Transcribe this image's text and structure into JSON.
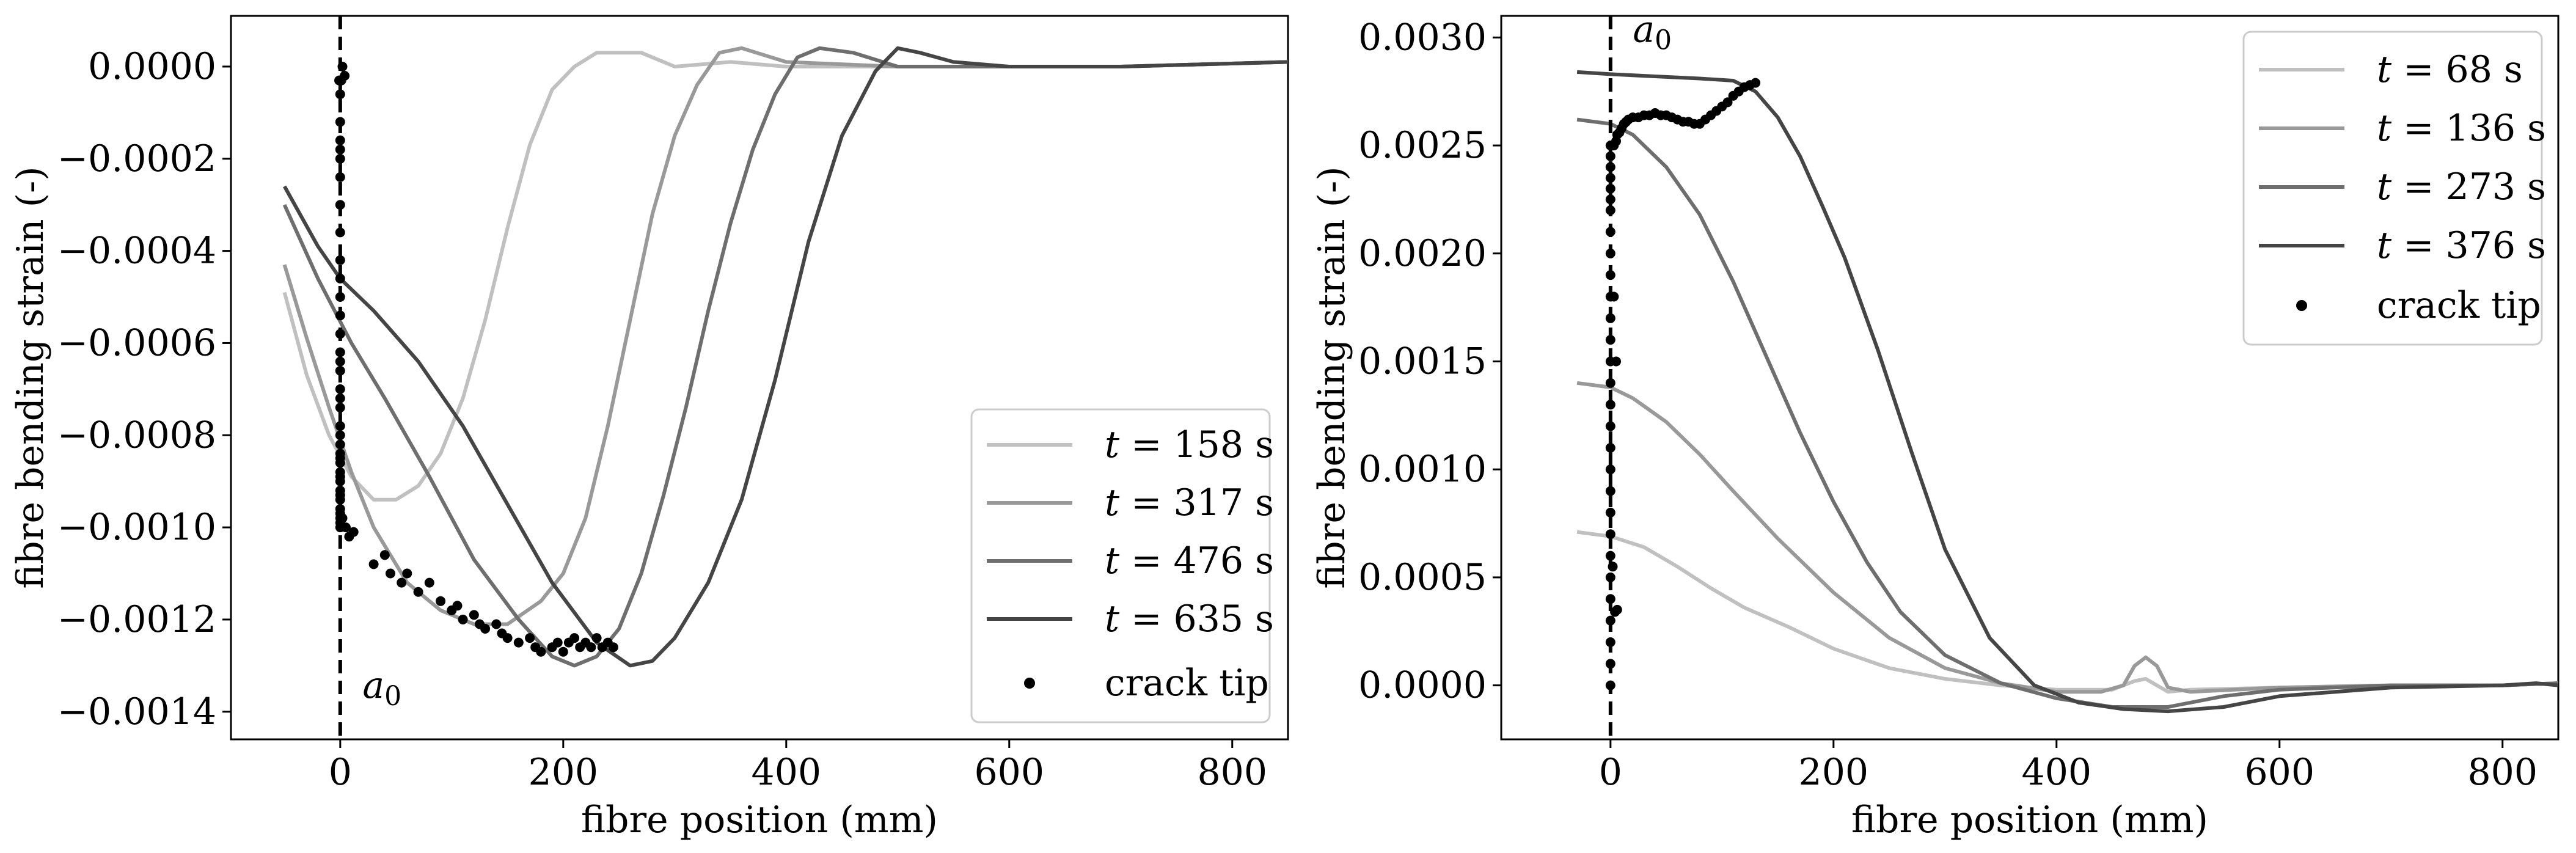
{
  "chart_data": [
    {
      "type": "line",
      "xlabel": "fibre position (mm)",
      "ylabel": "fibre bending strain (-)",
      "xlim": [
        -98,
        850
      ],
      "ylim": [
        -0.00146,
        0.00011
      ],
      "xticks": [
        0,
        200,
        400,
        600,
        800
      ],
      "xtick_labels": [
        "0",
        "200",
        "400",
        "600",
        "800"
      ],
      "yticks": [
        0.0,
        -0.0002,
        -0.0004,
        -0.0006,
        -0.0008,
        -0.001,
        -0.0012,
        -0.0014
      ],
      "ytick_labels": [
        "0.0000",
        "−0.0002",
        "−0.0004",
        "−0.0006",
        "−0.0008",
        "−0.0010",
        "−0.0012",
        "−0.0014"
      ],
      "grid": false,
      "legend_position": "bottom-right",
      "annotation": {
        "text": "a",
        "subscript": "0",
        "x": 20,
        "y": -0.00137
      },
      "vline": {
        "x": 0,
        "style": "dashed"
      },
      "series": [
        {
          "name": "t = 158 s",
          "label_var": "t",
          "label_rest": " = 158 s",
          "color": "#c0c0c0",
          "x": [
            -50,
            -30,
            -10,
            10,
            30,
            50,
            70,
            90,
            110,
            130,
            150,
            170,
            190,
            210,
            230,
            250,
            270,
            300,
            350,
            400,
            500,
            600,
            700,
            850
          ],
          "y": [
            -0.00049,
            -0.00067,
            -0.0008,
            -0.00089,
            -0.00094,
            -0.00094,
            -0.00091,
            -0.00084,
            -0.00072,
            -0.00055,
            -0.00035,
            -0.00017,
            -5e-05,
            0.0,
            3e-05,
            3e-05,
            3e-05,
            0.0,
            1e-05,
            0.0,
            0.0,
            0.0,
            0.0,
            1e-05
          ]
        },
        {
          "name": "t = 317 s",
          "label_var": "t",
          "label_rest": " = 317 s",
          "color": "#999999",
          "x": [
            -50,
            -30,
            -10,
            10,
            30,
            60,
            90,
            120,
            150,
            180,
            200,
            220,
            240,
            260,
            280,
            300,
            320,
            340,
            360,
            400,
            500,
            600,
            700,
            850
          ],
          "y": [
            -0.00043,
            -0.00059,
            -0.00074,
            -0.00088,
            -0.001,
            -0.00112,
            -0.00118,
            -0.00121,
            -0.00121,
            -0.00116,
            -0.0011,
            -0.00098,
            -0.00078,
            -0.00055,
            -0.00032,
            -0.00015,
            -4e-05,
            3e-05,
            4e-05,
            1e-05,
            0.0,
            0.0,
            0.0,
            1e-05
          ]
        },
        {
          "name": "t = 476 s",
          "label_var": "t",
          "label_rest": " = 476 s",
          "color": "#6e6e6e",
          "x": [
            -50,
            -20,
            10,
            40,
            80,
            120,
            160,
            190,
            210,
            230,
            250,
            270,
            290,
            310,
            330,
            350,
            370,
            390,
            410,
            430,
            460,
            500,
            600,
            700,
            850
          ],
          "y": [
            -0.0003,
            -0.00046,
            -0.0006,
            -0.00072,
            -0.00089,
            -0.00107,
            -0.0012,
            -0.00128,
            -0.0013,
            -0.00128,
            -0.00122,
            -0.0011,
            -0.00093,
            -0.00074,
            -0.00053,
            -0.00034,
            -0.00018,
            -6e-05,
            2e-05,
            4e-05,
            3e-05,
            0.0,
            0.0,
            0.0,
            1e-05
          ]
        },
        {
          "name": "t = 635 s",
          "label_var": "t",
          "label_rest": " = 635 s",
          "color": "#454545",
          "x": [
            -50,
            -20,
            0,
            30,
            70,
            110,
            150,
            190,
            230,
            260,
            280,
            300,
            330,
            360,
            390,
            420,
            450,
            480,
            500,
            520,
            550,
            600,
            700,
            850
          ],
          "y": [
            -0.00026,
            -0.00039,
            -0.00046,
            -0.00053,
            -0.00064,
            -0.00078,
            -0.00095,
            -0.00112,
            -0.00125,
            -0.0013,
            -0.00129,
            -0.00124,
            -0.00112,
            -0.00094,
            -0.00068,
            -0.00038,
            -0.00015,
            -1e-05,
            4e-05,
            3e-05,
            1e-05,
            0.0,
            0.0,
            1e-05
          ]
        }
      ],
      "scatter": {
        "name": "crack tip",
        "color": "#000000",
        "x": [
          0,
          0,
          0,
          0,
          0,
          0,
          0,
          0,
          0,
          0,
          0,
          0,
          0,
          0,
          0,
          0,
          0,
          0,
          0,
          0,
          0,
          0,
          0,
          0,
          0,
          0,
          0,
          0,
          0,
          0,
          0,
          0,
          0,
          0,
          0,
          0,
          0,
          2,
          5,
          8,
          12,
          -1,
          2,
          4,
          1,
          30,
          40,
          45,
          55,
          60,
          70,
          80,
          90,
          100,
          105,
          110,
          120,
          125,
          130,
          140,
          145,
          150,
          160,
          170,
          175,
          180,
          190,
          195,
          200,
          205,
          210,
          215,
          220,
          225,
          230,
          235,
          240,
          245
        ],
        "y": [
          -3e-05,
          -6e-05,
          -0.00012,
          -0.00018,
          -0.00024,
          -0.0003,
          -0.00036,
          -0.00042,
          -0.00046,
          -0.0005,
          -0.00054,
          -0.00058,
          -0.00062,
          -0.00066,
          -0.0007,
          -0.00074,
          -0.00078,
          -0.0008,
          -0.00082,
          -0.00084,
          -0.00086,
          -0.00088,
          -0.0009,
          -0.00092,
          -0.00094,
          -0.00096,
          -0.00098,
          -0.001,
          -0.00099,
          -0.00097,
          -0.00093,
          -0.00089,
          -0.00085,
          -0.00072,
          -0.00064,
          -0.0002,
          -0.00016,
          -0.00098,
          -0.001,
          -0.00102,
          -0.00101,
          -3e-05,
          0.0,
          -2e-05,
          -3e-05,
          -0.00108,
          -0.00106,
          -0.0011,
          -0.00112,
          -0.0011,
          -0.00114,
          -0.00112,
          -0.00116,
          -0.00118,
          -0.00117,
          -0.0012,
          -0.00119,
          -0.00121,
          -0.00122,
          -0.00121,
          -0.00123,
          -0.00124,
          -0.00125,
          -0.00124,
          -0.00126,
          -0.00127,
          -0.00126,
          -0.00125,
          -0.00127,
          -0.00125,
          -0.00124,
          -0.00126,
          -0.00125,
          -0.00126,
          -0.00124,
          -0.00126,
          -0.00125,
          -0.00126
        ]
      }
    },
    {
      "type": "line",
      "xlabel": "fibre position (mm)",
      "ylabel": "fibre bending strain (-)",
      "xlim": [
        -98,
        850
      ],
      "ylim": [
        -0.00025,
        0.0031
      ],
      "xticks": [
        0,
        200,
        400,
        600,
        800
      ],
      "xtick_labels": [
        "0",
        "200",
        "400",
        "600",
        "800"
      ],
      "yticks": [
        0.0,
        0.0005,
        0.001,
        0.0015,
        0.002,
        0.0025,
        0.003
      ],
      "ytick_labels": [
        "0.0000",
        "0.0005",
        "0.0010",
        "0.0015",
        "0.0020",
        "0.0025",
        "0.0030"
      ],
      "grid": false,
      "legend_position": "top-right",
      "annotation": {
        "text": "a",
        "subscript": "0",
        "x": 20,
        "y": 0.00298
      },
      "vline": {
        "x": 0,
        "style": "dashed"
      },
      "series": [
        {
          "name": "t = 68 s",
          "label_var": "t",
          "label_rest": " = 68 s",
          "color": "#c0c0c0",
          "x": [
            -30,
            0,
            30,
            60,
            90,
            120,
            160,
            200,
            250,
            300,
            350,
            400,
            450,
            470,
            480,
            490,
            500,
            520,
            600,
            700,
            800,
            850
          ],
          "y": [
            0.00071,
            0.00069,
            0.00064,
            0.00055,
            0.00045,
            0.00036,
            0.00027,
            0.00017,
            8e-05,
            3e-05,
            0.0,
            -2e-05,
            -2e-05,
            2e-05,
            3e-05,
            0.0,
            -3e-05,
            -2e-05,
            -1e-05,
            0.0,
            0.0,
            1e-05
          ]
        },
        {
          "name": "t = 136 s",
          "label_var": "t",
          "label_rest": " = 136 s",
          "color": "#999999",
          "x": [
            -30,
            0,
            20,
            50,
            80,
            110,
            150,
            200,
            250,
            300,
            350,
            400,
            440,
            460,
            470,
            480,
            490,
            500,
            520,
            600,
            700,
            800,
            850
          ],
          "y": [
            0.0014,
            0.00138,
            0.00133,
            0.00122,
            0.00107,
            0.0009,
            0.00068,
            0.00043,
            0.00022,
            8e-05,
            1e-05,
            -3e-05,
            -3e-05,
            0.0,
            9e-05,
            0.00013,
            9e-05,
            -1e-05,
            -3e-05,
            -1e-05,
            0.0,
            0.0,
            1e-05
          ]
        },
        {
          "name": "t = 273 s",
          "label_var": "t",
          "label_rest": " = 273 s",
          "color": "#6e6e6e",
          "x": [
            -30,
            0,
            20,
            50,
            80,
            110,
            140,
            170,
            200,
            230,
            260,
            300,
            350,
            400,
            450,
            500,
            550,
            600,
            700,
            800,
            850
          ],
          "y": [
            0.00262,
            0.0026,
            0.00255,
            0.0024,
            0.00218,
            0.00187,
            0.00152,
            0.00117,
            0.00085,
            0.00057,
            0.00034,
            0.00014,
            1e-05,
            -6e-05,
            -0.0001,
            -0.0001,
            -5e-05,
            -2e-05,
            0.0,
            0.0,
            1e-05
          ]
        },
        {
          "name": "t = 376 s",
          "label_var": "t",
          "label_rest": " = 376 s",
          "color": "#454545",
          "x": [
            -30,
            0,
            40,
            80,
            110,
            130,
            150,
            170,
            190,
            210,
            240,
            270,
            300,
            340,
            380,
            420,
            460,
            500,
            550,
            600,
            700,
            800,
            830,
            850
          ],
          "y": [
            0.00284,
            0.00283,
            0.00282,
            0.00281,
            0.0028,
            0.00275,
            0.00263,
            0.00245,
            0.00222,
            0.00198,
            0.00155,
            0.00108,
            0.00063,
            0.00022,
            0.0,
            -8e-05,
            -0.00011,
            -0.00012,
            -0.0001,
            -5e-05,
            -1e-05,
            0.0,
            1e-05,
            0.0
          ]
        }
      ],
      "scatter": {
        "name": "crack tip",
        "color": "#000000",
        "x": [
          0,
          0,
          0,
          0,
          0,
          0,
          0,
          0,
          0,
          0,
          0,
          0,
          0,
          0,
          0,
          0,
          0,
          0,
          0,
          0,
          0,
          0,
          0,
          0,
          0,
          0,
          0,
          0,
          0,
          3,
          5,
          6,
          8,
          10,
          12,
          14,
          16,
          20,
          25,
          30,
          35,
          40,
          45,
          50,
          55,
          60,
          65,
          70,
          75,
          80,
          85,
          90,
          95,
          100,
          105,
          110,
          115,
          120,
          125,
          130,
          4,
          6,
          2,
          5,
          3
        ],
        "y": [
          0.0,
          0.0001,
          0.0002,
          0.0003,
          0.0004,
          0.0005,
          0.0006,
          0.0007,
          0.0008,
          0.0009,
          0.001,
          0.0011,
          0.0012,
          0.0013,
          0.0014,
          0.0015,
          0.0016,
          0.0017,
          0.0018,
          0.0019,
          0.002,
          0.0021,
          0.0022,
          0.00225,
          0.0023,
          0.00235,
          0.0024,
          0.00245,
          0.0025,
          0.0025,
          0.00252,
          0.00255,
          0.00256,
          0.00258,
          0.0026,
          0.00261,
          0.00262,
          0.00263,
          0.00263,
          0.00264,
          0.00264,
          0.00265,
          0.00264,
          0.00264,
          0.00263,
          0.00262,
          0.00261,
          0.00261,
          0.0026,
          0.0026,
          0.00262,
          0.00264,
          0.00266,
          0.00268,
          0.0027,
          0.00273,
          0.00275,
          0.00277,
          0.00278,
          0.00279,
          0.00034,
          0.00035,
          0.00055,
          0.0015,
          0.0018
        ]
      }
    }
  ]
}
